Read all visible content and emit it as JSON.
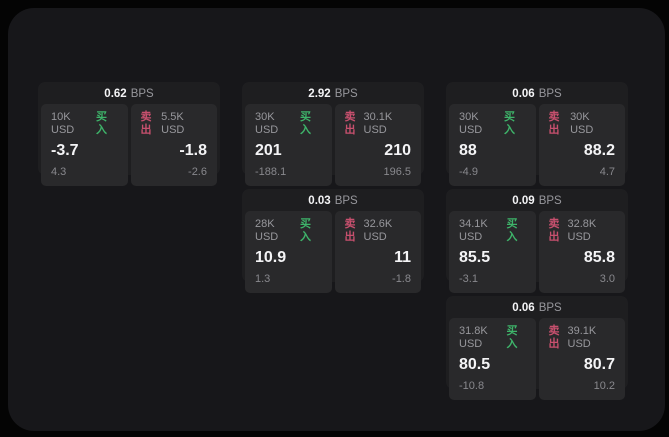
{
  "colors": {
    "outside_bg": "#040404",
    "window_bg": "#17171a",
    "card_bg": "#1e1e20",
    "cell_bg": "#29292b",
    "text_primary": "#f4f4f6",
    "text_secondary": "#97979c",
    "buy_green": "#3eb46a",
    "sell_rose": "#c7506e"
  },
  "labels": {
    "bps_unit": "BPS",
    "buy": "买入",
    "sell": "卖出"
  },
  "cards": [
    {
      "bps": "0.62",
      "row": 1,
      "col": 1,
      "buy": {
        "amount": "10K USD",
        "value": "-3.7",
        "sub": "4.3"
      },
      "sell": {
        "amount": "5.5K USD",
        "value": "-1.8",
        "sub": "-2.6"
      }
    },
    {
      "bps": "2.92",
      "row": 1,
      "col": 2,
      "buy": {
        "amount": "30K USD",
        "value": "201",
        "sub": "-188.1"
      },
      "sell": {
        "amount": "30.1K USD",
        "value": "210",
        "sub": "196.5"
      }
    },
    {
      "bps": "0.06",
      "row": 1,
      "col": 3,
      "buy": {
        "amount": "30K USD",
        "value": "88",
        "sub": "-4.9"
      },
      "sell": {
        "amount": "30K USD",
        "value": "88.2",
        "sub": "4.7"
      }
    },
    {
      "bps": "0.03",
      "row": 2,
      "col": 2,
      "buy": {
        "amount": "28K USD",
        "value": "10.9",
        "sub": "1.3"
      },
      "sell": {
        "amount": "32.6K USD",
        "value": "11",
        "sub": "-1.8"
      }
    },
    {
      "bps": "0.09",
      "row": 2,
      "col": 3,
      "buy": {
        "amount": "34.1K USD",
        "value": "85.5",
        "sub": "-3.1"
      },
      "sell": {
        "amount": "32.8K USD",
        "value": "85.8",
        "sub": "3.0"
      }
    },
    {
      "bps": "0.06",
      "row": 3,
      "col": 3,
      "buy": {
        "amount": "31.8K USD",
        "value": "80.5",
        "sub": "-10.8"
      },
      "sell": {
        "amount": "39.1K USD",
        "value": "80.7",
        "sub": "10.2"
      }
    }
  ]
}
